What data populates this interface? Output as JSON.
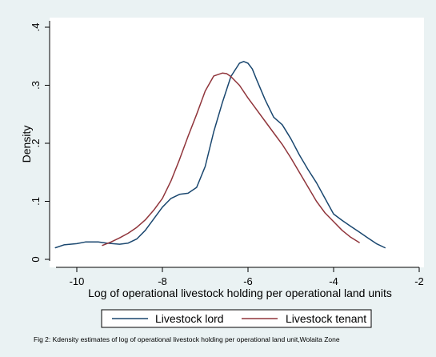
{
  "chart_data": {
    "type": "line",
    "title": "",
    "xlabel": "Log of operational livestock holding per operational land units",
    "ylabel": "Density",
    "xlim": [
      -10.6,
      -2
    ],
    "ylim": [
      -0.005,
      0.4
    ],
    "xticks": [
      -10,
      -8,
      -6,
      -4,
      -2
    ],
    "xtick_labels": [
      "-10",
      "-8",
      "-6",
      "-4",
      "-2"
    ],
    "yticks": [
      0,
      0.1,
      0.2,
      0.3,
      0.4
    ],
    "ytick_labels": [
      "0",
      ".1",
      ".2",
      ".3",
      ".4"
    ],
    "grid": false,
    "legend_position": "bottom",
    "caption": "Fig 2: Kdensity estimates of log of operational livestock holding per operational land unit,Wolaita Zone",
    "series": [
      {
        "name": "Livestock lord",
        "color": "#1a476f",
        "points": [
          [
            -10.5,
            0.02
          ],
          [
            -10.3,
            0.025
          ],
          [
            -10.0,
            0.027
          ],
          [
            -9.8,
            0.03
          ],
          [
            -9.5,
            0.03
          ],
          [
            -9.3,
            0.028
          ],
          [
            -9.0,
            0.026
          ],
          [
            -8.8,
            0.028
          ],
          [
            -8.6,
            0.035
          ],
          [
            -8.4,
            0.05
          ],
          [
            -8.2,
            0.07
          ],
          [
            -8.0,
            0.09
          ],
          [
            -7.8,
            0.105
          ],
          [
            -7.6,
            0.112
          ],
          [
            -7.4,
            0.114
          ],
          [
            -7.2,
            0.124
          ],
          [
            -7.0,
            0.16
          ],
          [
            -6.8,
            0.22
          ],
          [
            -6.6,
            0.27
          ],
          [
            -6.4,
            0.315
          ],
          [
            -6.2,
            0.338
          ],
          [
            -6.1,
            0.341
          ],
          [
            -6.0,
            0.338
          ],
          [
            -5.9,
            0.328
          ],
          [
            -5.8,
            0.31
          ],
          [
            -5.6,
            0.275
          ],
          [
            -5.4,
            0.245
          ],
          [
            -5.2,
            0.232
          ],
          [
            -5.0,
            0.208
          ],
          [
            -4.8,
            0.18
          ],
          [
            -4.6,
            0.155
          ],
          [
            -4.4,
            0.132
          ],
          [
            -4.2,
            0.105
          ],
          [
            -4.0,
            0.078
          ],
          [
            -3.8,
            0.067
          ],
          [
            -3.6,
            0.057
          ],
          [
            -3.4,
            0.047
          ],
          [
            -3.2,
            0.037
          ],
          [
            -3.0,
            0.027
          ],
          [
            -2.8,
            0.02
          ]
        ]
      },
      {
        "name": "Livestock tenant",
        "color": "#90353b",
        "points": [
          [
            -9.4,
            0.024
          ],
          [
            -9.2,
            0.03
          ],
          [
            -9.0,
            0.037
          ],
          [
            -8.8,
            0.045
          ],
          [
            -8.6,
            0.055
          ],
          [
            -8.4,
            0.068
          ],
          [
            -8.2,
            0.085
          ],
          [
            -8.0,
            0.105
          ],
          [
            -7.8,
            0.135
          ],
          [
            -7.6,
            0.172
          ],
          [
            -7.4,
            0.212
          ],
          [
            -7.2,
            0.25
          ],
          [
            -7.0,
            0.29
          ],
          [
            -6.8,
            0.316
          ],
          [
            -6.6,
            0.321
          ],
          [
            -6.5,
            0.32
          ],
          [
            -6.4,
            0.315
          ],
          [
            -6.2,
            0.3
          ],
          [
            -6.0,
            0.278
          ],
          [
            -5.8,
            0.258
          ],
          [
            -5.6,
            0.238
          ],
          [
            -5.4,
            0.218
          ],
          [
            -5.2,
            0.198
          ],
          [
            -5.0,
            0.175
          ],
          [
            -4.8,
            0.15
          ],
          [
            -4.6,
            0.125
          ],
          [
            -4.4,
            0.1
          ],
          [
            -4.2,
            0.08
          ],
          [
            -4.0,
            0.065
          ],
          [
            -3.8,
            0.05
          ],
          [
            -3.6,
            0.038
          ],
          [
            -3.4,
            0.029
          ]
        ]
      }
    ]
  }
}
